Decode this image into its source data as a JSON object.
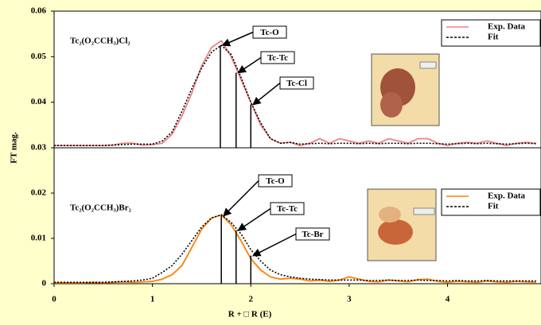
{
  "chart_data": [
    {
      "type": "line",
      "title": "Tc₂(O₂CCH₃)Cl₂",
      "ylabel": "FT mag.",
      "x": [
        0,
        0.1,
        0.2,
        0.3,
        0.4,
        0.5,
        0.6,
        0.7,
        0.8,
        0.9,
        1.0,
        1.1,
        1.2,
        1.3,
        1.4,
        1.5,
        1.6,
        1.7,
        1.8,
        1.9,
        2.0,
        2.1,
        2.2,
        2.3,
        2.4,
        2.5,
        2.6,
        2.7,
        2.8,
        2.9,
        3.0,
        3.1,
        3.2,
        3.3,
        3.4,
        3.5,
        3.6,
        3.7,
        3.8,
        3.9,
        4.0,
        4.1,
        4.2,
        4.3,
        4.4,
        4.5,
        4.6,
        4.7,
        4.8,
        4.9
      ],
      "xlim": [
        0,
        4.95
      ],
      "ylim": [
        0.03,
        0.06
      ],
      "yticks": [
        0.03,
        0.04,
        0.05,
        0.06
      ],
      "series": [
        {
          "name": "Exp. Data",
          "color": "#f08080",
          "dash": false,
          "values": [
            0.0305,
            0.0305,
            0.0305,
            0.0305,
            0.0305,
            0.0305,
            0.0306,
            0.031,
            0.031,
            0.0306,
            0.0307,
            0.031,
            0.033,
            0.037,
            0.042,
            0.048,
            0.052,
            0.0535,
            0.05,
            0.045,
            0.04,
            0.035,
            0.032,
            0.031,
            0.0312,
            0.0305,
            0.031,
            0.032,
            0.031,
            0.032,
            0.0315,
            0.031,
            0.0315,
            0.031,
            0.032,
            0.0315,
            0.031,
            0.032,
            0.032,
            0.031,
            0.0305,
            0.031,
            0.0312,
            0.031,
            0.0315,
            0.031,
            0.0305,
            0.031,
            0.0312,
            0.031
          ]
        },
        {
          "name": "Fit",
          "color": "#000000",
          "dash": true,
          "values": [
            0.0305,
            0.0305,
            0.0305,
            0.0305,
            0.0305,
            0.0305,
            0.0306,
            0.0307,
            0.0308,
            0.0308,
            0.0308,
            0.0315,
            0.0335,
            0.038,
            0.043,
            0.0475,
            0.051,
            0.0525,
            0.0505,
            0.0455,
            0.04,
            0.0355,
            0.032,
            0.031,
            0.0312,
            0.0308,
            0.0309,
            0.031,
            0.0309,
            0.031,
            0.031,
            0.0309,
            0.031,
            0.0309,
            0.031,
            0.031,
            0.0309,
            0.031,
            0.031,
            0.0309,
            0.0308,
            0.0309,
            0.031,
            0.0309,
            0.031,
            0.0309,
            0.0308,
            0.0309,
            0.031,
            0.0309
          ]
        }
      ],
      "annotations": [
        {
          "label": "Tc-O",
          "x": 1.69,
          "y": 0.0525
        },
        {
          "label": "Tc-Tc",
          "x": 1.85,
          "y": 0.0465
        },
        {
          "label": "Tc-Cl",
          "x": 2.0,
          "y": 0.0395
        }
      ]
    },
    {
      "type": "line",
      "title": "Tc₂(O₂CCH₃)Br₂",
      "xlabel": "R + □ R (E)",
      "x": [
        0,
        0.1,
        0.2,
        0.3,
        0.4,
        0.5,
        0.6,
        0.7,
        0.8,
        0.9,
        1.0,
        1.1,
        1.2,
        1.3,
        1.4,
        1.5,
        1.6,
        1.7,
        1.8,
        1.9,
        2.0,
        2.1,
        2.2,
        2.3,
        2.4,
        2.5,
        2.6,
        2.7,
        2.8,
        2.9,
        3.0,
        3.1,
        3.2,
        3.3,
        3.4,
        3.5,
        3.6,
        3.7,
        3.8,
        3.9,
        4.0,
        4.1,
        4.2,
        4.3,
        4.4,
        4.5,
        4.6,
        4.7,
        4.8,
        4.9
      ],
      "xlim": [
        0,
        4.95
      ],
      "xticks": [
        0,
        1,
        2,
        3,
        4
      ],
      "ylim": [
        0,
        0.03
      ],
      "yticks": [
        0,
        0.01,
        0.02
      ],
      "series": [
        {
          "name": "Exp. Data",
          "color": "#ff8000",
          "dash": false,
          "values": [
            0.0002,
            0.0002,
            0.0002,
            0.0002,
            0.0003,
            0.0002,
            0.0003,
            0.0004,
            0.0003,
            0.0004,
            0.0005,
            0.001,
            0.002,
            0.004,
            0.008,
            0.012,
            0.0145,
            0.0152,
            0.013,
            0.0095,
            0.0055,
            0.003,
            0.0015,
            0.001,
            0.0012,
            0.001,
            0.0006,
            0.0008,
            0.0005,
            0.0008,
            0.0015,
            0.001,
            0.0005,
            0.0004,
            0.0008,
            0.0006,
            0.0004,
            0.0009,
            0.001,
            0.0005,
            0.0003,
            0.0005,
            0.0004,
            0.0003,
            0.0006,
            0.0004,
            0.0003,
            0.0005,
            0.0004,
            0.0003
          ]
        },
        {
          "name": "Fit",
          "color": "#000000",
          "dash": true,
          "values": [
            0.0003,
            0.0003,
            0.0003,
            0.0003,
            0.0003,
            0.0003,
            0.0004,
            0.0005,
            0.0006,
            0.0008,
            0.0012,
            0.0025,
            0.004,
            0.0065,
            0.0095,
            0.0125,
            0.0145,
            0.0152,
            0.0135,
            0.011,
            0.0075,
            0.005,
            0.003,
            0.002,
            0.0015,
            0.0012,
            0.001,
            0.0009,
            0.0008,
            0.0008,
            0.0008,
            0.0008,
            0.0007,
            0.0007,
            0.0008,
            0.0007,
            0.0007,
            0.0008,
            0.0007,
            0.0007,
            0.0006,
            0.0007,
            0.0006,
            0.0006,
            0.0007,
            0.0006,
            0.0006,
            0.0006,
            0.0006,
            0.0006
          ]
        }
      ],
      "annotations": [
        {
          "label": "Tc-O",
          "x": 1.7,
          "y": 0.015
        },
        {
          "label": "Tc-Tc",
          "x": 1.85,
          "y": 0.0118
        },
        {
          "label": "Tc-Br",
          "x": 2.0,
          "y": 0.0062
        }
      ]
    }
  ]
}
